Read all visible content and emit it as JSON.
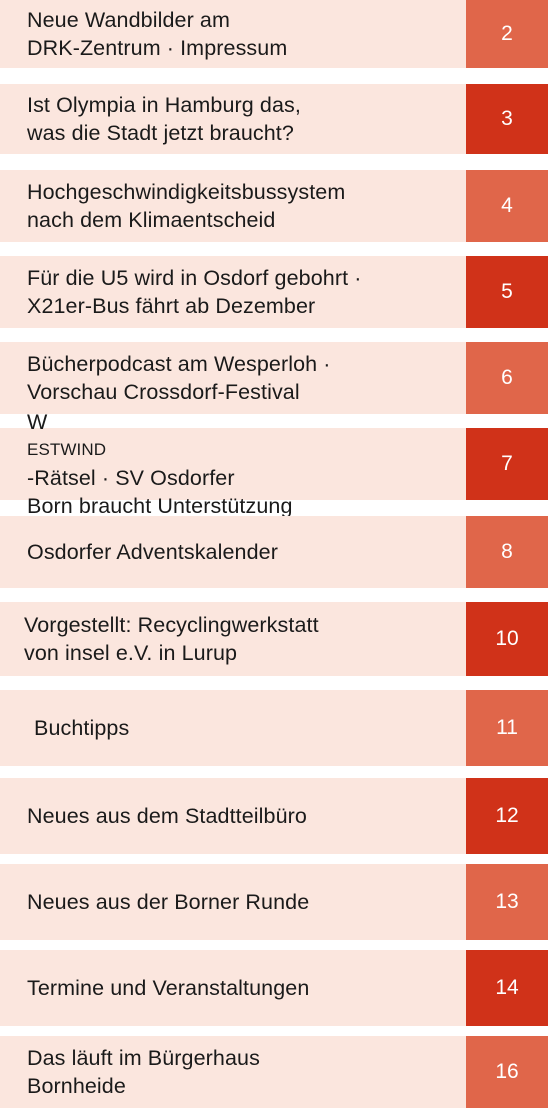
{
  "toc": {
    "entries": [
      {
        "title": "Neue Wandbilder am\nDRK-Zentrum · Impressum",
        "page": "2",
        "tone": "light"
      },
      {
        "title": "Ist Olympia in Hamburg das,\nwas die Stadt jetzt braucht?",
        "page": "3",
        "tone": "dark"
      },
      {
        "title": "Hochgeschwindigkeitsbussystem\nnach dem Klimaentscheid",
        "page": "4",
        "tone": "light"
      },
      {
        "title": "Für die U5 wird in Osdorf gebohrt ·\nX21er-Bus fährt ab Dezember",
        "page": "5",
        "tone": "dark"
      },
      {
        "title": "Bücherpodcast am Wesperloh ·\nVorschau Crossdorf-Festival",
        "page": "6",
        "tone": "light"
      },
      {
        "title_prefix": "W",
        "title_smallcaps": "estwind",
        "title": "-Rätsel · SV Osdorfer\nBorn braucht Unterstützung",
        "page": "7",
        "tone": "dark"
      },
      {
        "title": "Osdorfer Adventskalender",
        "page": "8",
        "tone": "light"
      },
      {
        "title": "Vorgestellt: Recyclingwerkstatt\nvon insel e.V. in Lurup",
        "page": "10",
        "tone": "dark"
      },
      {
        "title": "Buchtipps",
        "page": "11",
        "tone": "light"
      },
      {
        "title": "Neues aus dem Stadtteilbüro",
        "page": "12",
        "tone": "dark"
      },
      {
        "title": "Neues aus der Borner Runde",
        "page": "13",
        "tone": "light"
      },
      {
        "title": "Termine und Veranstaltungen",
        "page": "14",
        "tone": "dark"
      },
      {
        "title": "Das läuft im Bürgerhaus\nBornheide",
        "page": "16",
        "tone": "light"
      }
    ]
  }
}
